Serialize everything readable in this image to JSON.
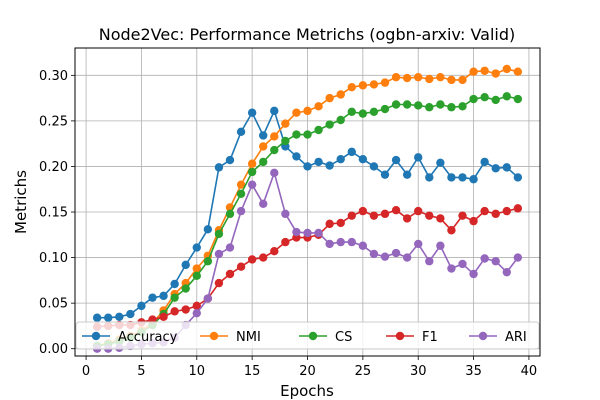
{
  "chart_data": {
    "type": "line",
    "title": "Node2Vec: Performance Metrichs (ogbn-arxiv: Valid)",
    "xlabel": "Epochs",
    "ylabel": "Metrichs",
    "xlim": [
      -1,
      41
    ],
    "ylim": [
      -0.008,
      0.33
    ],
    "xticks": [
      0,
      5,
      10,
      15,
      20,
      25,
      30,
      35,
      40
    ],
    "yticks": [
      0.0,
      0.05,
      0.1,
      0.15,
      0.2,
      0.25,
      0.3
    ],
    "ytick_labels": [
      "0.00",
      "0.05",
      "0.10",
      "0.15",
      "0.20",
      "0.25",
      "0.30"
    ],
    "grid": true,
    "legend_position": "bottom, horizontal",
    "x": [
      1,
      2,
      3,
      4,
      5,
      6,
      7,
      8,
      9,
      10,
      11,
      12,
      13,
      14,
      15,
      16,
      17,
      18,
      19,
      20,
      21,
      22,
      23,
      24,
      25,
      26,
      27,
      28,
      29,
      30,
      31,
      32,
      33,
      34,
      35,
      36,
      37,
      38,
      39
    ],
    "series": [
      {
        "name": "Accuracy",
        "color": "#1f77b4",
        "values": [
          0.034,
          0.034,
          0.035,
          0.038,
          0.047,
          0.056,
          0.058,
          0.071,
          0.092,
          0.111,
          0.131,
          0.199,
          0.207,
          0.238,
          0.259,
          0.234,
          0.261,
          0.222,
          0.211,
          0.2,
          0.205,
          0.201,
          0.208,
          0.216,
          0.208,
          0.2,
          0.191,
          0.207,
          0.191,
          0.21,
          0.188,
          0.204,
          0.188,
          0.188,
          0.186,
          0.205,
          0.198,
          0.199,
          0.188
        ]
      },
      {
        "name": "NMI",
        "color": "#ff7f0e",
        "values": [
          0.003,
          0.006,
          0.01,
          0.014,
          0.02,
          0.028,
          0.042,
          0.06,
          0.072,
          0.088,
          0.102,
          0.13,
          0.155,
          0.18,
          0.203,
          0.222,
          0.233,
          0.247,
          0.259,
          0.261,
          0.266,
          0.275,
          0.279,
          0.287,
          0.289,
          0.29,
          0.292,
          0.298,
          0.297,
          0.298,
          0.296,
          0.298,
          0.295,
          0.295,
          0.304,
          0.305,
          0.302,
          0.307,
          0.304
        ]
      },
      {
        "name": "CS",
        "color": "#2ca02c",
        "values": [
          0.003,
          0.005,
          0.008,
          0.012,
          0.018,
          0.026,
          0.038,
          0.056,
          0.066,
          0.08,
          0.096,
          0.126,
          0.148,
          0.17,
          0.194,
          0.205,
          0.218,
          0.228,
          0.235,
          0.235,
          0.24,
          0.246,
          0.251,
          0.26,
          0.258,
          0.26,
          0.263,
          0.268,
          0.268,
          0.267,
          0.265,
          0.268,
          0.265,
          0.266,
          0.274,
          0.276,
          0.273,
          0.277,
          0.274
        ]
      },
      {
        "name": "F1",
        "color": "#d62728",
        "values": [
          0.024,
          0.025,
          0.026,
          0.026,
          0.029,
          0.032,
          0.035,
          0.041,
          0.043,
          0.047,
          0.055,
          0.072,
          0.082,
          0.09,
          0.098,
          0.1,
          0.107,
          0.117,
          0.122,
          0.122,
          0.125,
          0.137,
          0.138,
          0.146,
          0.151,
          0.146,
          0.148,
          0.152,
          0.143,
          0.151,
          0.146,
          0.143,
          0.13,
          0.146,
          0.14,
          0.151,
          0.148,
          0.151,
          0.154
        ]
      },
      {
        "name": "ARI",
        "color": "#9467bd",
        "values": [
          0.0,
          0.0,
          0.001,
          0.003,
          0.005,
          0.006,
          0.007,
          0.012,
          0.026,
          0.039,
          0.055,
          0.104,
          0.111,
          0.151,
          0.18,
          0.159,
          0.193,
          0.148,
          0.128,
          0.127,
          0.127,
          0.115,
          0.117,
          0.117,
          0.113,
          0.104,
          0.101,
          0.105,
          0.1,
          0.115,
          0.096,
          0.113,
          0.088,
          0.093,
          0.082,
          0.099,
          0.096,
          0.084,
          0.1
        ]
      }
    ]
  }
}
